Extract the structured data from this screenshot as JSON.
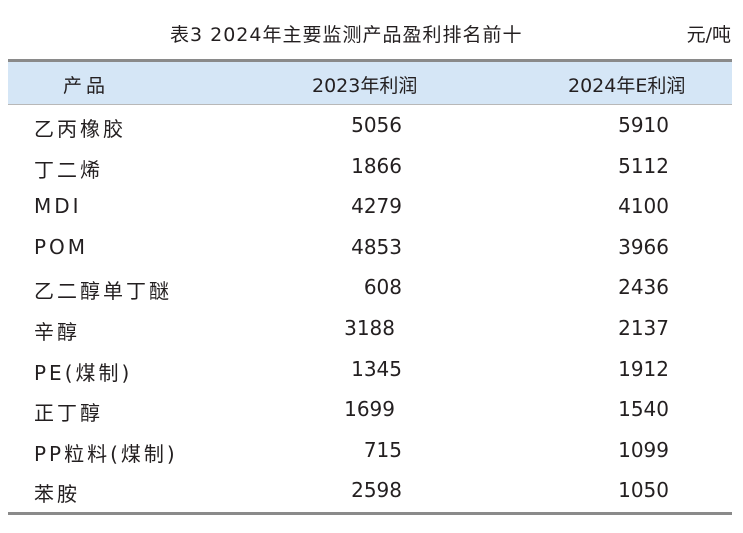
{
  "caption": {
    "title": "表3  2024年主要监测产品盈利排名前十",
    "unit": "元/吨"
  },
  "table": {
    "headers": [
      "产品",
      "2023年利润",
      "2024年E利润"
    ],
    "rows": [
      {
        "product": "乙丙橡胶",
        "profit_2023": "5056",
        "profit_2024e": "5910"
      },
      {
        "product": "丁二烯",
        "profit_2023": "1866",
        "profit_2024e": "5112"
      },
      {
        "product": "MDI",
        "profit_2023": "4279",
        "profit_2024e": "4100"
      },
      {
        "product": "POM",
        "profit_2023": "4853",
        "profit_2024e": "3966"
      },
      {
        "product": "乙二醇单丁醚",
        "profit_2023": "608",
        "profit_2024e": "2436"
      },
      {
        "product": "辛醇",
        "profit_2023": "3188",
        "profit_2024e": "2137"
      },
      {
        "product": "PE(煤制)",
        "profit_2023": "1345",
        "profit_2024e": "1912"
      },
      {
        "product": "正丁醇",
        "profit_2023": "1699",
        "profit_2024e": "1540"
      },
      {
        "product": "PP粒料(煤制)",
        "profit_2023": "715",
        "profit_2024e": "1099"
      },
      {
        "product": "苯胺",
        "profit_2023": "2598",
        "profit_2024e": "1050"
      }
    ]
  },
  "colors": {
    "header_background": "#d5e6f6",
    "rule": "#8a8a8a",
    "text": "#231f20"
  }
}
